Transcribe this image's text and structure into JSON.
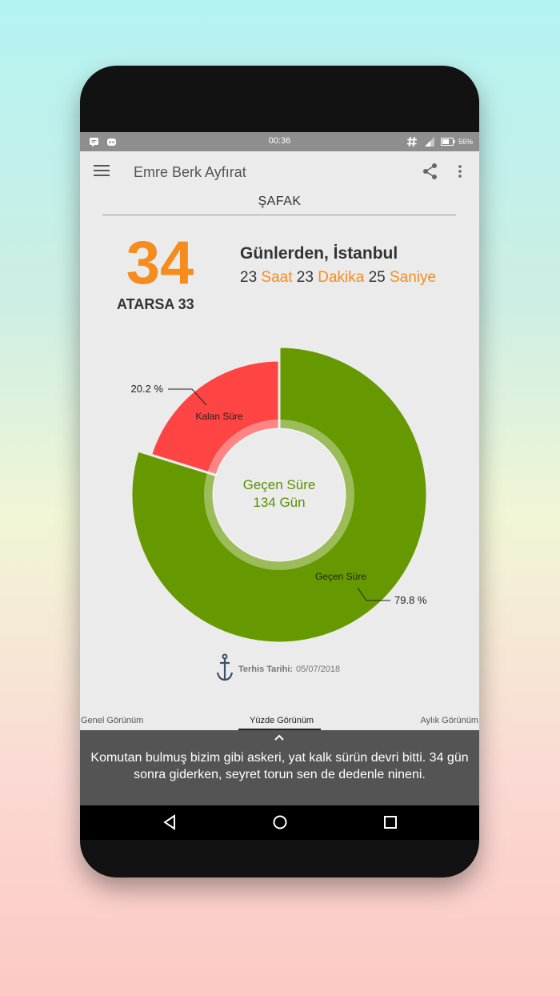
{
  "status_bar": {
    "time": "00:36",
    "battery": "56%",
    "left_icons": [
      "message-icon",
      "notification-icon"
    ],
    "right_icons": [
      "hashtag-icon",
      "signal-icon",
      "battery-icon"
    ]
  },
  "app_bar": {
    "title": "Emre Berk Ayfırat",
    "icons": [
      "menu-icon",
      "share-icon",
      "more-icon"
    ]
  },
  "subtitle": "ŞAFAK",
  "countdown": {
    "days": "34",
    "atarsa_label": "ATARSA 33",
    "days_label": "Günlerden, İstanbul",
    "hours": "23",
    "hours_unit": "Saat",
    "minutes": "23",
    "minutes_unit": "Dakika",
    "seconds": "25",
    "seconds_unit": "Saniye"
  },
  "chart_data": {
    "type": "pie",
    "categories": [
      "Geçen Süre",
      "Kalan Süre"
    ],
    "values": [
      79.8,
      20.2
    ],
    "value_labels": [
      "79.8 %",
      "20.2 %"
    ],
    "colors": [
      "#669900",
      "#ff4444"
    ],
    "center_label": "Geçen Süre",
    "center_value": "134 Gün"
  },
  "terhis": {
    "label": "Terhis Tarihi:",
    "date": "05/07/2018",
    "icon": "anchor-icon"
  },
  "tabs": [
    {
      "label": "Genel Görünüm",
      "active": false
    },
    {
      "label": "Yüzde Görünüm",
      "active": true
    },
    {
      "label": "Aylık Görünüm",
      "active": false
    }
  ],
  "quote": {
    "line1": "Komutan bulmuş bizim gibi askeri, yat kalk sürün devri bitti. 34 gün",
    "line2": "sonra giderken, seyret torun sen de dedenle nineni."
  },
  "nav_bar": {
    "icons": [
      "back-icon",
      "home-icon",
      "recents-icon"
    ]
  }
}
